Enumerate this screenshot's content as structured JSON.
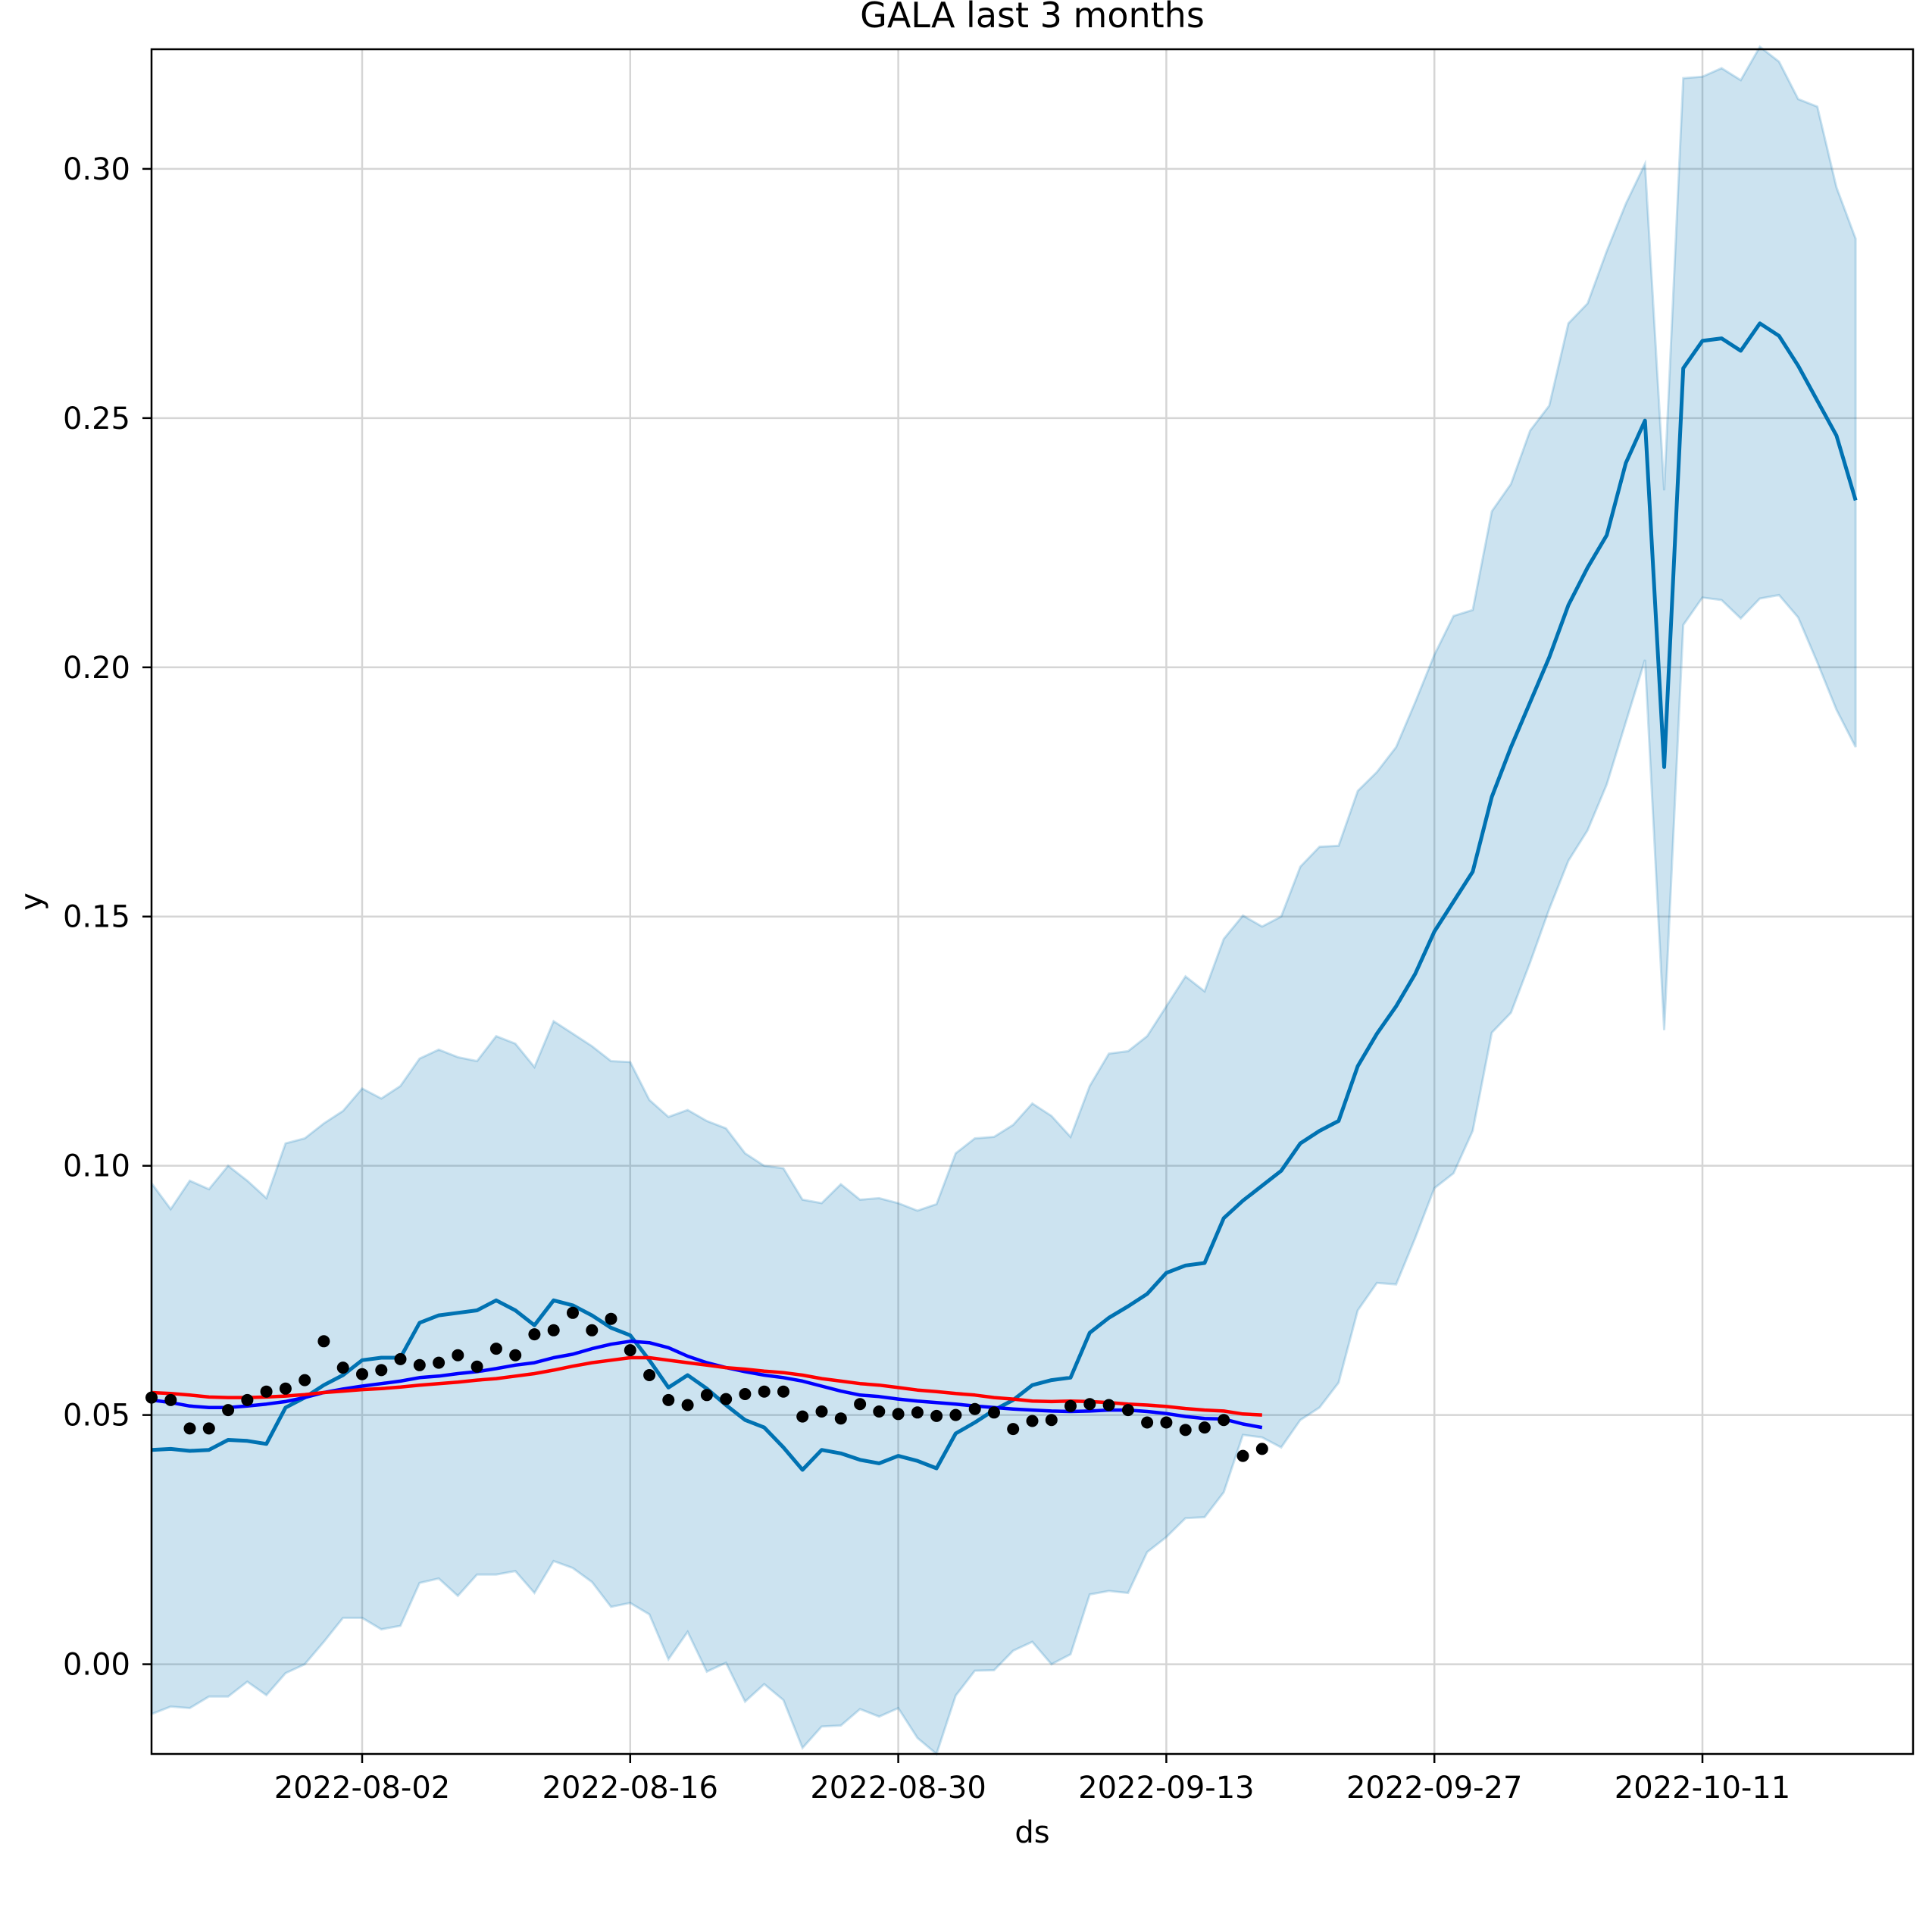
{
  "chart_data": {
    "type": "line",
    "title": "GALA last 3 months",
    "xlabel": "ds",
    "ylabel": "y",
    "x_start": "2022-07-22",
    "xlim": [
      "2022-07-22",
      "2022-10-22"
    ],
    "ylim": [
      -0.018,
      0.324
    ],
    "x_ticks": [
      "2022-08-02",
      "2022-08-16",
      "2022-08-30",
      "2022-09-13",
      "2022-09-27",
      "2022-10-11"
    ],
    "y_ticks": [
      0.0,
      0.05,
      0.1,
      0.15,
      0.2,
      0.25,
      0.3
    ],
    "y_tick_labels": [
      "0.00",
      "0.05",
      "0.10",
      "0.15",
      "0.20",
      "0.25",
      "0.30"
    ],
    "grid": true,
    "colors": {
      "forecast": "#0072B2",
      "interval": "#0072B2",
      "ma_short": "#0000FF",
      "ma_long": "#FF0000",
      "observed": "#000000"
    },
    "series": [
      {
        "kind": "observed",
        "values": [
          0.0535,
          0.053,
          0.0473,
          0.0473,
          0.051,
          0.053,
          0.0547,
          0.0553,
          0.057,
          0.0648,
          0.0595,
          0.0582,
          0.059,
          0.0612,
          0.06,
          0.0605,
          0.062,
          0.0597,
          0.0633,
          0.062,
          0.0662,
          0.067,
          0.0705,
          0.067,
          0.0693,
          0.063,
          0.058,
          0.053,
          0.052,
          0.054,
          0.0532,
          0.0542,
          0.0547,
          0.0547,
          0.0497,
          0.0507,
          0.0493,
          0.0522,
          0.0507,
          0.0502,
          0.0505,
          0.0498,
          0.05,
          0.0512,
          0.0505,
          0.0472,
          0.0488,
          0.049,
          0.0518,
          0.0522,
          0.052,
          0.051,
          0.0485,
          0.0485,
          0.047,
          0.0475,
          0.049,
          0.0418,
          0.0432
        ]
      },
      {
        "kind": "ma_short",
        "values": [
          0.053,
          0.0525,
          0.0518,
          0.0515,
          0.0515,
          0.0518,
          0.0522,
          0.0527,
          0.0535,
          0.0545,
          0.0552,
          0.0558,
          0.0563,
          0.0568,
          0.0575,
          0.0578,
          0.0583,
          0.0587,
          0.0593,
          0.06,
          0.0605,
          0.0615,
          0.0622,
          0.0633,
          0.0642,
          0.0648,
          0.0645,
          0.0635,
          0.0618,
          0.0605,
          0.0595,
          0.0587,
          0.058,
          0.0575,
          0.0568,
          0.0558,
          0.0548,
          0.054,
          0.0537,
          0.0532,
          0.0528,
          0.0525,
          0.0522,
          0.0518,
          0.0515,
          0.0512,
          0.051,
          0.0508,
          0.0507,
          0.0508,
          0.051,
          0.051,
          0.0507,
          0.0503,
          0.0497,
          0.0493,
          0.0492,
          0.0482,
          0.0475
        ]
      },
      {
        "kind": "ma_long",
        "values": [
          0.0545,
          0.0543,
          0.054,
          0.0536,
          0.0535,
          0.0535,
          0.0536,
          0.0538,
          0.0541,
          0.0545,
          0.0548,
          0.0551,
          0.0553,
          0.0556,
          0.056,
          0.0563,
          0.0566,
          0.057,
          0.0573,
          0.0578,
          0.0583,
          0.059,
          0.0598,
          0.0605,
          0.061,
          0.0615,
          0.0615,
          0.061,
          0.0605,
          0.06,
          0.0595,
          0.0592,
          0.0588,
          0.0585,
          0.058,
          0.0573,
          0.0568,
          0.0563,
          0.056,
          0.0555,
          0.055,
          0.0547,
          0.0543,
          0.054,
          0.0535,
          0.0532,
          0.0528,
          0.0527,
          0.0528,
          0.0527,
          0.0525,
          0.0522,
          0.052,
          0.0517,
          0.0513,
          0.051,
          0.0508,
          0.0502,
          0.05
        ]
      },
      {
        "kind": "forecast",
        "values": [
          0.043,
          0.0432,
          0.0428,
          0.043,
          0.045,
          0.0448,
          0.0442,
          0.0515,
          0.0535,
          0.056,
          0.058,
          0.061,
          0.0615,
          0.0615,
          0.0685,
          0.07,
          0.0705,
          0.071,
          0.073,
          0.071,
          0.068,
          0.073,
          0.072,
          0.07,
          0.0675,
          0.066,
          0.061,
          0.0555,
          0.058,
          0.0553,
          0.052,
          0.049,
          0.0475,
          0.0435,
          0.039,
          0.043,
          0.0423,
          0.041,
          0.0403,
          0.0418,
          0.0408,
          0.0393,
          0.0463,
          0.0485,
          0.051,
          0.053,
          0.056,
          0.057,
          0.0575,
          0.0665,
          0.0695,
          0.0718,
          0.0743,
          0.0785,
          0.08,
          0.0805,
          0.0895,
          0.093,
          0.096,
          0.099,
          0.1045,
          0.107,
          0.109,
          0.12,
          0.1265,
          0.132,
          0.1385,
          0.147,
          0.153,
          0.159,
          0.174,
          0.184,
          0.193,
          0.202,
          0.2125,
          0.22,
          0.2265,
          0.241,
          0.2495,
          0.18,
          0.26,
          0.2655,
          0.266,
          0.2635,
          0.269,
          0.2665,
          0.2605,
          0.2535,
          0.2465,
          0.2335
        ]
      },
      {
        "kind": "interval_upper",
        "values": [
          0.0965,
          0.0913,
          0.097,
          0.0953,
          0.1,
          0.097,
          0.0935,
          0.1045,
          0.1055,
          0.1085,
          0.111,
          0.1155,
          0.1135,
          0.116,
          0.1215,
          0.1233,
          0.1218,
          0.121,
          0.126,
          0.1245,
          0.1198,
          0.129,
          0.1265,
          0.124,
          0.121,
          0.1208,
          0.1132,
          0.1098,
          0.1112,
          0.109,
          0.1075,
          0.1025,
          0.1,
          0.0995,
          0.0932,
          0.0925,
          0.0963,
          0.0932,
          0.0935,
          0.0925,
          0.091,
          0.0923,
          0.1025,
          0.1055,
          0.1058,
          0.1082,
          0.1125,
          0.11,
          0.1058,
          0.116,
          0.1225,
          0.123,
          0.126,
          0.132,
          0.138,
          0.135,
          0.1455,
          0.1502,
          0.148,
          0.15,
          0.16,
          0.164,
          0.1642,
          0.1752,
          0.179,
          0.184,
          0.193,
          0.2025,
          0.2103,
          0.2115,
          0.2313,
          0.2368,
          0.2475,
          0.2525,
          0.269,
          0.273,
          0.2835,
          0.293,
          0.301,
          0.2355,
          0.3182,
          0.3185,
          0.3202,
          0.3178,
          0.3245,
          0.3215,
          0.314,
          0.3125,
          0.2963,
          0.286
        ]
      },
      {
        "kind": "interval_lower",
        "values": [
          -0.01,
          -0.0085,
          -0.0088,
          -0.0065,
          -0.0065,
          -0.0035,
          -0.0062,
          -0.0018,
          0.0,
          0.0045,
          0.0093,
          0.0093,
          0.007,
          0.0077,
          0.0163,
          0.0172,
          0.0137,
          0.018,
          0.018,
          0.0187,
          0.0143,
          0.0207,
          0.0193,
          0.0165,
          0.0115,
          0.0123,
          0.01,
          0.001,
          0.0065,
          -0.0015,
          0.0003,
          -0.0075,
          -0.004,
          -0.0072,
          -0.0168,
          -0.0125,
          -0.0123,
          -0.009,
          -0.0105,
          -0.0088,
          -0.0148,
          -0.018,
          -0.0063,
          -0.0013,
          -0.0012,
          0.0027,
          0.0045,
          0.0,
          0.002,
          0.014,
          0.0147,
          0.0143,
          0.0225,
          0.0255,
          0.0293,
          0.0295,
          0.0345,
          0.046,
          0.0455,
          0.0435,
          0.049,
          0.0515,
          0.0565,
          0.071,
          0.0765,
          0.0762,
          0.0855,
          0.0955,
          0.0985,
          0.107,
          0.1267,
          0.1307,
          0.1408,
          0.1515,
          0.1612,
          0.1673,
          0.1765,
          0.189,
          0.2015,
          0.1272,
          0.2085,
          0.214,
          0.2135,
          0.2098,
          0.2138,
          0.2145,
          0.21,
          0.201,
          0.1915,
          0.184
        ]
      }
    ]
  }
}
